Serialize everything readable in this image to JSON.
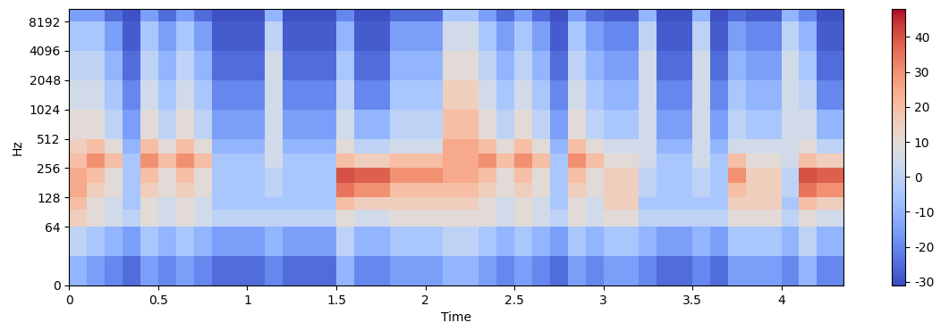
{
  "chart_data": {
    "type": "heatmap",
    "x_label": "Time",
    "y_label": "Hz",
    "log": "y",
    "xlim": [
      0,
      4.35
    ],
    "xticks": [
      0,
      0.5,
      1,
      1.5,
      2,
      2.5,
      3,
      3.5,
      4
    ],
    "ylim": [
      0,
      11025
    ],
    "yticks": [
      0,
      64,
      128,
      256,
      512,
      1024,
      2048,
      4096,
      8192
    ],
    "x_edges": [
      0,
      0.1,
      0.2,
      0.3,
      0.4,
      0.5,
      0.6,
      0.7,
      0.8,
      0.9,
      1.0,
      1.1,
      1.2,
      1.3,
      1.4,
      1.5,
      1.6,
      1.7,
      1.8,
      1.9,
      2.0,
      2.1,
      2.2,
      2.3,
      2.4,
      2.5,
      2.6,
      2.7,
      2.8,
      2.9,
      3.0,
      3.1,
      3.2,
      3.3,
      3.4,
      3.5,
      3.6,
      3.7,
      3.8,
      3.9,
      4.0,
      4.1,
      4.2,
      4.3,
      4.4
    ],
    "y_edges": [
      0,
      32,
      64,
      96,
      128,
      180,
      256,
      360,
      512,
      1024,
      2048,
      4096,
      8192,
      11025
    ],
    "cells": [
      [
        -10,
        -15,
        -20,
        -25,
        -15,
        -20,
        -15,
        -20,
        -25,
        -25,
        -25,
        -20,
        -25,
        -25,
        -25,
        -10,
        -20,
        -20,
        -15,
        -15,
        -15,
        -10,
        -10,
        -15,
        -20,
        -15,
        -20,
        -25,
        -15,
        -20,
        -15,
        -15,
        -20,
        -25,
        -25,
        -20,
        -25,
        -15,
        -15,
        -15,
        -20,
        -10,
        -20,
        -20
      ],
      [
        0,
        -5,
        -10,
        -15,
        -5,
        -10,
        -5,
        -10,
        -15,
        -15,
        -15,
        -10,
        -15,
        -15,
        -15,
        0,
        -10,
        -10,
        -5,
        -5,
        -5,
        0,
        0,
        -5,
        -10,
        -5,
        -10,
        -15,
        -5,
        -10,
        -5,
        -5,
        -10,
        -15,
        -15,
        -10,
        -15,
        -5,
        -5,
        -5,
        -10,
        0,
        -10,
        -10
      ],
      [
        15,
        10,
        5,
        0,
        10,
        5,
        10,
        5,
        0,
        0,
        0,
        0,
        0,
        0,
        0,
        10,
        5,
        5,
        10,
        10,
        10,
        10,
        10,
        10,
        5,
        10,
        5,
        0,
        10,
        5,
        10,
        10,
        0,
        0,
        0,
        0,
        0,
        10,
        10,
        10,
        0,
        10,
        5,
        5
      ],
      [
        20,
        10,
        5,
        -5,
        10,
        5,
        10,
        5,
        -5,
        -5,
        -5,
        -5,
        -5,
        -5,
        -5,
        20,
        15,
        15,
        15,
        15,
        15,
        15,
        15,
        10,
        5,
        10,
        5,
        -5,
        10,
        5,
        15,
        15,
        -5,
        -5,
        -5,
        -5,
        -5,
        15,
        15,
        15,
        -5,
        20,
        15,
        15
      ],
      [
        25,
        15,
        10,
        -5,
        15,
        10,
        15,
        10,
        -5,
        -5,
        -5,
        0,
        -5,
        -5,
        -5,
        35,
        30,
        30,
        20,
        20,
        20,
        20,
        20,
        15,
        10,
        15,
        10,
        -5,
        15,
        10,
        15,
        15,
        0,
        -5,
        -5,
        0,
        -5,
        20,
        15,
        15,
        0,
        35,
        30,
        30
      ],
      [
        25,
        20,
        10,
        -5,
        20,
        10,
        20,
        10,
        -5,
        -5,
        -5,
        0,
        -5,
        -5,
        -5,
        40,
        38,
        38,
        30,
        30,
        30,
        25,
        25,
        20,
        10,
        20,
        10,
        -5,
        20,
        10,
        15,
        15,
        0,
        -5,
        -5,
        0,
        -5,
        30,
        15,
        15,
        0,
        40,
        38,
        38
      ],
      [
        20,
        30,
        20,
        -5,
        30,
        20,
        30,
        20,
        -5,
        -5,
        -5,
        5,
        -5,
        -5,
        -5,
        20,
        15,
        15,
        20,
        20,
        20,
        25,
        25,
        30,
        20,
        30,
        20,
        -5,
        30,
        20,
        10,
        10,
        5,
        -5,
        -5,
        5,
        -5,
        20,
        10,
        10,
        5,
        20,
        15,
        15
      ],
      [
        15,
        20,
        10,
        -10,
        20,
        10,
        20,
        10,
        -10,
        -10,
        -10,
        5,
        -10,
        -10,
        -10,
        10,
        0,
        0,
        5,
        5,
        5,
        25,
        25,
        20,
        10,
        20,
        10,
        -10,
        20,
        10,
        5,
        5,
        5,
        -10,
        -10,
        5,
        -10,
        5,
        5,
        5,
        5,
        10,
        0,
        0
      ],
      [
        10,
        10,
        0,
        -15,
        10,
        0,
        10,
        0,
        -15,
        -15,
        -15,
        5,
        -15,
        -15,
        -15,
        5,
        -10,
        -10,
        0,
        0,
        0,
        20,
        20,
        10,
        0,
        10,
        0,
        -15,
        10,
        0,
        -5,
        -5,
        5,
        -15,
        -15,
        5,
        -15,
        0,
        -5,
        -5,
        5,
        5,
        -10,
        -10
      ],
      [
        5,
        5,
        -5,
        -20,
        5,
        -5,
        5,
        -5,
        -20,
        -20,
        -20,
        5,
        -20,
        -20,
        -20,
        0,
        -20,
        -20,
        -5,
        -5,
        -5,
        15,
        15,
        5,
        -5,
        5,
        -5,
        -20,
        5,
        -5,
        -10,
        -10,
        5,
        -20,
        -20,
        5,
        -20,
        -5,
        -10,
        -10,
        5,
        0,
        -20,
        -20
      ],
      [
        0,
        0,
        -10,
        -25,
        0,
        -10,
        0,
        -10,
        -25,
        -25,
        -25,
        5,
        -25,
        -25,
        -25,
        -5,
        -25,
        -25,
        -10,
        -10,
        -10,
        10,
        10,
        0,
        -10,
        0,
        -10,
        -25,
        0,
        -10,
        -15,
        -15,
        5,
        -25,
        -25,
        5,
        -25,
        -10,
        -15,
        -15,
        5,
        -5,
        -25,
        -25
      ],
      [
        -5,
        -5,
        -15,
        -28,
        -5,
        -15,
        -5,
        -15,
        -28,
        -28,
        -28,
        0,
        -28,
        -28,
        -28,
        -10,
        -28,
        -28,
        -15,
        -15,
        -15,
        5,
        5,
        -5,
        -15,
        -5,
        -15,
        -28,
        -5,
        -15,
        -20,
        -20,
        0,
        -28,
        -28,
        0,
        -28,
        -15,
        -20,
        -20,
        0,
        -10,
        -28,
        -28
      ],
      [
        -15,
        -15,
        -25,
        -30,
        -15,
        -25,
        -15,
        -25,
        -30,
        -30,
        -30,
        -10,
        -30,
        -30,
        -30,
        -20,
        -30,
        -30,
        -25,
        -25,
        -25,
        -5,
        -5,
        -15,
        -25,
        -15,
        -25,
        -30,
        -15,
        -25,
        -28,
        -28,
        -10,
        -30,
        -30,
        -10,
        -30,
        -25,
        -28,
        -28,
        -10,
        -20,
        -30,
        -30
      ]
    ],
    "colorbar": {
      "range": [
        -31,
        48
      ],
      "ticks": [
        -30,
        -20,
        -10,
        0,
        10,
        20,
        30,
        40
      ]
    }
  }
}
